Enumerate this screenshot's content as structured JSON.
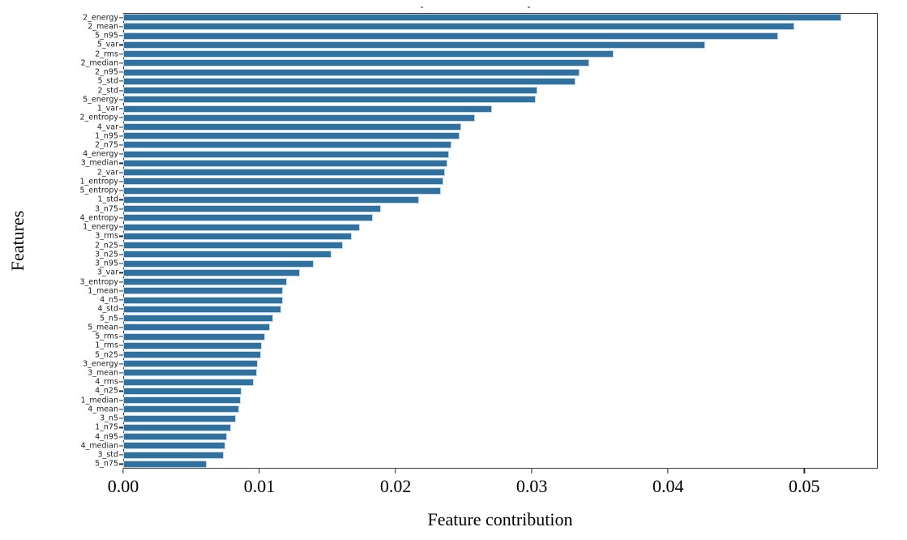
{
  "chart_data": {
    "type": "bar",
    "orientation": "horizontal",
    "title": "",
    "xlabel": "Feature contribution",
    "ylabel": "Features",
    "xlim": [
      0,
      0.0554
    ],
    "xticks": [
      0.0,
      0.01,
      0.02,
      0.03,
      0.04,
      0.05
    ],
    "xtick_labels": [
      "0.00",
      "0.01",
      "0.02",
      "0.03",
      "0.04",
      "0.05"
    ],
    "grid": false,
    "legend": false,
    "bar_color": "#31719f",
    "bar_edge_color": "#bdd5e6",
    "categories": [
      "2_energy",
      "2_mean",
      "5_n95",
      "5_var",
      "2_rms",
      "2_median",
      "2_n95",
      "5_std",
      "2_std",
      "5_energy",
      "1_var",
      "2_entropy",
      "4_var",
      "1_n95",
      "2_n75",
      "4_energy",
      "3_median",
      "2_var",
      "1_entropy",
      "5_entropy",
      "1_std",
      "3_n75",
      "4_entropy",
      "1_energy",
      "3_rms",
      "2_n25",
      "3_n25",
      "3_n95",
      "3_var",
      "3_entropy",
      "1_mean",
      "4_n5",
      "4_std",
      "5_n5",
      "5_mean",
      "5_rms",
      "1_rms",
      "5_n25",
      "3_energy",
      "3_mean",
      "4_rms",
      "4_n25",
      "1_median",
      "4_mean",
      "3_n5",
      "1_n75",
      "4_n95",
      "4_median",
      "3_std",
      "5_n75"
    ],
    "values": [
      0.0527,
      0.0493,
      0.0481,
      0.0427,
      0.036,
      0.0342,
      0.0335,
      0.0332,
      0.0304,
      0.0303,
      0.0271,
      0.0258,
      0.0248,
      0.0247,
      0.0241,
      0.0239,
      0.0238,
      0.0236,
      0.0235,
      0.0233,
      0.0217,
      0.0189,
      0.0183,
      0.0174,
      0.0168,
      0.0161,
      0.0153,
      0.014,
      0.013,
      0.012,
      0.0117,
      0.0117,
      0.0116,
      0.011,
      0.0108,
      0.0104,
      0.0102,
      0.0101,
      0.0099,
      0.0098,
      0.0096,
      0.0087,
      0.0086,
      0.0085,
      0.0083,
      0.0079,
      0.0076,
      0.0075,
      0.0074,
      0.0061
    ]
  }
}
